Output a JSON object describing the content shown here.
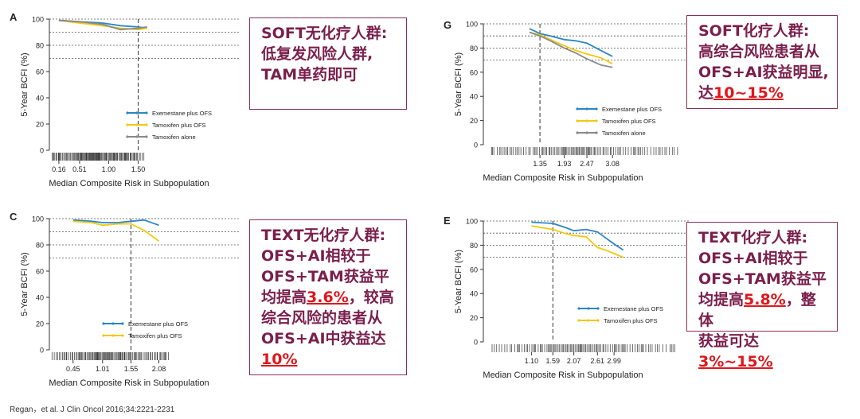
{
  "citation": "Regan，et al. J Clin Oncol 2016;34:2221-2231",
  "colors": {
    "exemestane": "#2b86c5",
    "tamoxifen_ofs": "#f2c80f",
    "tamoxifen_alone": "#8a8a8a",
    "callout_text": "#7a1f4c",
    "highlight": "#e0161b"
  },
  "callouts": [
    {
      "id": "A",
      "segments": [
        {
          "t": "SOFT无化疗人群:"
        },
        {
          "br": true
        },
        {
          "t": "低复发风险人群,"
        },
        {
          "br": true
        },
        {
          "t": "TAM单药即可"
        }
      ]
    },
    {
      "id": "G",
      "segments": [
        {
          "t": "SOFT化疗人群:"
        },
        {
          "br": true
        },
        {
          "t": "高综合风险患者从"
        },
        {
          "br": true
        },
        {
          "t": "OFS+AI获益明显,"
        },
        {
          "br": true
        },
        {
          "t": "达"
        },
        {
          "t": "10~15%",
          "hl": true
        }
      ]
    },
    {
      "id": "C",
      "segments": [
        {
          "t": "TEXT无化疗人群:"
        },
        {
          "br": true
        },
        {
          "t": "OFS+AI相较于"
        },
        {
          "br": true
        },
        {
          "t": "OFS+TAM获益平"
        },
        {
          "br": true
        },
        {
          "t": "均提高"
        },
        {
          "t": "3.6%",
          "hl": true
        },
        {
          "t": "，较高"
        },
        {
          "br": true
        },
        {
          "t": "综合风险的患者从"
        },
        {
          "br": true
        },
        {
          "t": "OFS+AI中获益达"
        },
        {
          "br": true
        },
        {
          "t": "10%",
          "hl": true
        }
      ]
    },
    {
      "id": "E",
      "segments": [
        {
          "t": "TEXT化疗人群:"
        },
        {
          "br": true
        },
        {
          "t": "OFS+AI相较于"
        },
        {
          "br": true
        },
        {
          "t": "OFS+TAM获益平"
        },
        {
          "br": true
        },
        {
          "t": "均提高"
        },
        {
          "t": "5.8%",
          "hl": true
        },
        {
          "t": "，整体"
        },
        {
          "br": true
        },
        {
          "t": "获益可达"
        },
        {
          "t": "3%~15%",
          "hl": true
        }
      ]
    }
  ],
  "chart_data": [
    {
      "panel": "A",
      "type": "line",
      "ylabel": "5-Year BCFI (%)",
      "xlabel": "Median Composite Risk in Subpopulation",
      "ylim": [
        0,
        100
      ],
      "yticks": [
        0,
        20,
        40,
        60,
        80,
        100
      ],
      "ygrid": [
        70,
        80,
        90,
        100
      ],
      "xlim": [
        0,
        3.2
      ],
      "xtick_labels": [
        [
          "0.16",
          0.16
        ],
        [
          "0.51",
          0.51
        ],
        [
          "1.00",
          1.0
        ],
        [
          "1.50",
          1.5
        ]
      ],
      "ref_x": 1.5,
      "rug": [
        0.05,
        1.6
      ],
      "legend_position": "bottom-right",
      "series": [
        {
          "name": "Exemestane plus OFS",
          "color": "#2b86c5",
          "points": [
            [
              0.16,
              99
            ],
            [
              0.51,
              98
            ],
            [
              0.9,
              97
            ],
            [
              1.2,
              95
            ],
            [
              1.5,
              94
            ],
            [
              1.65,
              93
            ]
          ]
        },
        {
          "name": "Tamoxifen plus OFS",
          "color": "#f2c80f",
          "points": [
            [
              0.16,
              99
            ],
            [
              0.51,
              97
            ],
            [
              0.9,
              95
            ],
            [
              1.2,
              93
            ],
            [
              1.5,
              92
            ],
            [
              1.65,
              93
            ]
          ]
        },
        {
          "name": "Tamoxifen alone",
          "color": "#8a8a8a",
          "points": [
            [
              0.16,
              99
            ],
            [
              0.51,
              98
            ],
            [
              0.9,
              96
            ],
            [
              1.2,
              92
            ],
            [
              1.5,
              93
            ],
            [
              1.65,
              94
            ]
          ]
        }
      ]
    },
    {
      "panel": "G",
      "type": "line",
      "ylabel": "5-Year BCFI (%)",
      "xlabel": "Median Composite Risk in Subpopulation",
      "ylim": [
        0,
        100
      ],
      "yticks": [
        0,
        20,
        40,
        60,
        80,
        100
      ],
      "ygrid": [
        70,
        80,
        90,
        100
      ],
      "xlim": [
        0,
        4.9
      ],
      "xtick_labels": [
        [
          "1.35",
          1.35
        ],
        [
          "1.93",
          1.93
        ],
        [
          "2.47",
          2.47
        ],
        [
          "3.08",
          3.08
        ]
      ],
      "ref_x": 1.35,
      "rug": [
        0.2,
        4.7
      ],
      "legend_position": "bottom-right",
      "series": [
        {
          "name": "Exemestane plus OFS",
          "color": "#2b86c5",
          "points": [
            [
              1.1,
              96
            ],
            [
              1.35,
              92
            ],
            [
              1.6,
              90
            ],
            [
              1.93,
              87
            ],
            [
              2.2,
              86
            ],
            [
              2.47,
              84
            ],
            [
              2.8,
              78
            ],
            [
              3.08,
              73
            ]
          ]
        },
        {
          "name": "Tamoxifen plus OFS",
          "color": "#f2c80f",
          "points": [
            [
              1.1,
              93
            ],
            [
              1.35,
              91
            ],
            [
              1.6,
              87
            ],
            [
              1.93,
              82
            ],
            [
              2.2,
              78
            ],
            [
              2.47,
              75
            ],
            [
              2.8,
              72
            ],
            [
              3.08,
              67
            ]
          ]
        },
        {
          "name": "Tamoxifen alone",
          "color": "#8a8a8a",
          "points": [
            [
              1.1,
              93
            ],
            [
              1.35,
              90
            ],
            [
              1.6,
              86
            ],
            [
              1.93,
              80
            ],
            [
              2.2,
              76
            ],
            [
              2.47,
              71
            ],
            [
              2.8,
              66
            ],
            [
              3.08,
              64
            ]
          ]
        }
      ]
    },
    {
      "panel": "C",
      "type": "line",
      "ylabel": "5-Year BCFI (%)",
      "xlabel": "Median Composite Risk in Subpopulation",
      "ylim": [
        0,
        100
      ],
      "yticks": [
        0,
        20,
        40,
        60,
        80,
        100
      ],
      "ygrid": [
        70,
        80,
        90,
        100
      ],
      "xlim": [
        0,
        3.6
      ],
      "xtick_labels": [
        [
          "0.45",
          0.45
        ],
        [
          "1.01",
          1.01
        ],
        [
          "1.55",
          1.55
        ],
        [
          "2.08",
          2.08
        ]
      ],
      "ref_x": 1.55,
      "rug": [
        0.05,
        2.3
      ],
      "legend_position": "bottom-right",
      "series": [
        {
          "name": "Exemestane plus OFS",
          "color": "#2b86c5",
          "points": [
            [
              0.45,
              99
            ],
            [
              0.8,
              98
            ],
            [
              1.01,
              97
            ],
            [
              1.3,
              97
            ],
            [
              1.55,
              98
            ],
            [
              1.8,
              99
            ],
            [
              2.08,
              95
            ]
          ]
        },
        {
          "name": "Tamoxifen plus OFS",
          "color": "#f2c80f",
          "points": [
            [
              0.45,
              98
            ],
            [
              0.8,
              97
            ],
            [
              1.01,
              95
            ],
            [
              1.3,
              96
            ],
            [
              1.55,
              96
            ],
            [
              1.8,
              91
            ],
            [
              2.08,
              83
            ]
          ]
        }
      ]
    },
    {
      "panel": "E",
      "type": "line",
      "ylabel": "5-Year BCFI (%)",
      "xlabel": "Median Composite Risk in Subpopulation",
      "ylim": [
        0,
        100
      ],
      "yticks": [
        0,
        20,
        40,
        60,
        80,
        100
      ],
      "ygrid": [
        70,
        80,
        90,
        100
      ],
      "xlim": [
        0,
        4.7
      ],
      "xtick_labels": [
        [
          "1.10",
          1.1
        ],
        [
          "1.59",
          1.59
        ],
        [
          "2.07",
          2.07
        ],
        [
          "2.61",
          2.61
        ],
        [
          "2.99",
          2.99
        ]
      ],
      "ref_x": 1.59,
      "rug": [
        0.2,
        4.4
      ],
      "legend_position": "bottom-right",
      "series": [
        {
          "name": "Exemestane plus OFS",
          "color": "#2b86c5",
          "points": [
            [
              1.1,
              99
            ],
            [
              1.59,
              98
            ],
            [
              1.85,
              95
            ],
            [
              2.07,
              92
            ],
            [
              2.35,
              93
            ],
            [
              2.61,
              91
            ],
            [
              2.8,
              86
            ],
            [
              2.99,
              81
            ],
            [
              3.2,
              76
            ]
          ]
        },
        {
          "name": "Tamoxifen plus OFS",
          "color": "#f2c80f",
          "points": [
            [
              1.1,
              96
            ],
            [
              1.59,
              93
            ],
            [
              1.85,
              90
            ],
            [
              2.07,
              88
            ],
            [
              2.35,
              87
            ],
            [
              2.61,
              78
            ],
            [
              2.8,
              76
            ],
            [
              2.99,
              73
            ],
            [
              3.2,
              70
            ]
          ]
        }
      ]
    }
  ]
}
